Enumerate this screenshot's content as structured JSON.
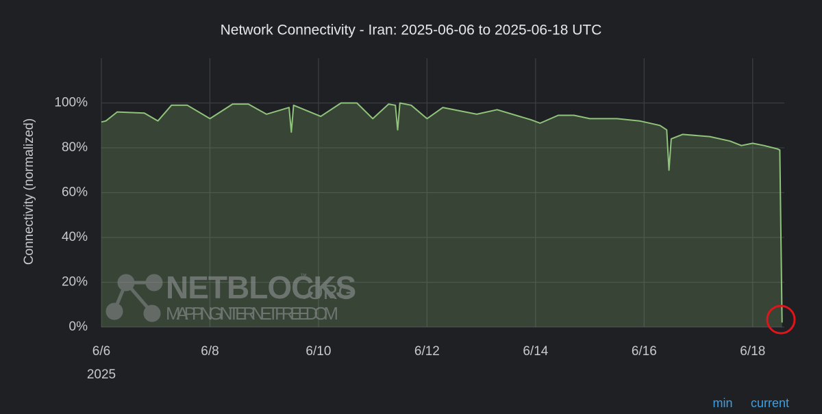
{
  "chart_data": {
    "type": "area",
    "title": "Network Connectivity - Iran: 2025-06-06 to 2025-06-18 UTC",
    "y_label": "Connectivity (normalized)",
    "x": [
      "2025-06-06T00:00",
      "2025-06-06T02:00",
      "2025-06-06T07:00",
      "2025-06-06T19:00",
      "2025-06-07T01:00",
      "2025-06-07T07:00",
      "2025-06-07T14:00",
      "2025-06-08T00:00",
      "2025-06-08T10:00",
      "2025-06-08T17:00",
      "2025-06-09T01:00",
      "2025-06-09T11:00",
      "2025-06-09T12:00",
      "2025-06-09T13:00",
      "2025-06-10T01:00",
      "2025-06-10T10:00",
      "2025-06-10T17:00",
      "2025-06-11T00:00",
      "2025-06-11T07:00",
      "2025-06-11T10:00",
      "2025-06-11T11:00",
      "2025-06-11T12:00",
      "2025-06-11T17:00",
      "2025-06-12T00:00",
      "2025-06-12T07:00",
      "2025-06-12T22:00",
      "2025-06-13T07:00",
      "2025-06-13T22:00",
      "2025-06-14T02:00",
      "2025-06-14T10:00",
      "2025-06-14T17:00",
      "2025-06-15T00:00",
      "2025-06-15T12:00",
      "2025-06-15T22:00",
      "2025-06-16T07:00",
      "2025-06-16T10:00",
      "2025-06-16T11:00",
      "2025-06-16T12:00",
      "2025-06-16T17:00",
      "2025-06-17T05:00",
      "2025-06-17T14:00",
      "2025-06-17T19:00",
      "2025-06-18T00:00",
      "2025-06-18T05:00",
      "2025-06-18T11:00",
      "2025-06-18T12:00",
      "2025-06-18T13:00"
    ],
    "series": [
      {
        "name": "Iran",
        "color": "#8fc47a",
        "values": [
          91.5,
          92,
          96,
          95.5,
          92,
          99,
          99,
          93,
          99.5,
          99.5,
          95,
          98,
          87,
          99,
          94,
          100,
          100,
          93,
          99.5,
          99,
          88,
          100,
          99,
          93,
          98,
          95,
          97,
          92.5,
          91,
          94.5,
          94.5,
          93,
          93,
          92,
          90,
          88,
          70,
          84,
          86,
          85,
          83,
          81,
          82,
          81,
          79.5,
          79,
          2
        ]
      }
    ],
    "xlim": [
      "2025-06-06T00:00",
      "2025-06-18T14:00"
    ],
    "xticks": [
      {
        "value": "2025-06-06",
        "label": "6/6",
        "year": "2025"
      },
      {
        "value": "2025-06-08",
        "label": "6/8"
      },
      {
        "value": "2025-06-10",
        "label": "6/10"
      },
      {
        "value": "2025-06-12",
        "label": "6/12"
      },
      {
        "value": "2025-06-14",
        "label": "6/14"
      },
      {
        "value": "2025-06-16",
        "label": "6/16"
      },
      {
        "value": "2025-06-18",
        "label": "6/18"
      }
    ],
    "ylim": [
      0,
      120
    ],
    "yticks": [
      {
        "value": 0,
        "label": "0%"
      },
      {
        "value": 20,
        "label": "20%"
      },
      {
        "value": 40,
        "label": "40%"
      },
      {
        "value": 60,
        "label": "60%"
      },
      {
        "value": 80,
        "label": "80%"
      },
      {
        "value": 100,
        "label": "100%"
      }
    ],
    "grid": true,
    "legend_columns": [
      "min",
      "current"
    ],
    "watermark": {
      "name": "NETBLOCKS",
      "suffix": ".ORG",
      "tm": "™",
      "tagline": "MAPPING INTERNET FREEDOM"
    }
  }
}
